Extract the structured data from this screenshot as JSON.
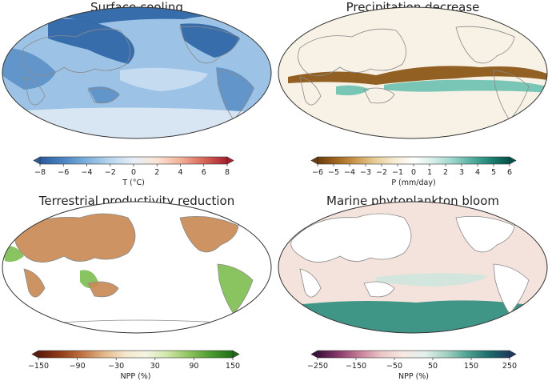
{
  "chart_data": [
    {
      "type": "heatmap",
      "title": "Surface cooling",
      "colorbar": {
        "label": "T (°C)",
        "ticks": [
          -8,
          -6,
          -4,
          -2,
          0,
          2,
          4,
          6,
          8
        ],
        "tick_labels": [
          "−8",
          "−6",
          "−4",
          "−2",
          "0",
          "2",
          "4",
          "6",
          "8"
        ],
        "range": [
          -8,
          8
        ],
        "colormap": [
          "#2c5a9c",
          "#4a85c2",
          "#7fb0db",
          "#b8d6ee",
          "#e6f0f8",
          "#fbe3d5",
          "#f2b199",
          "#d8675a",
          "#a51f2e"
        ]
      },
      "map_fill": "#9cc3e6",
      "regions": [
        {
          "kind": "land-dark",
          "color": "#2f66a6"
        },
        {
          "kind": "land-mid",
          "color": "#5d93c9"
        },
        {
          "kind": "ocean-light",
          "color": "#c9def1"
        },
        {
          "kind": "southern-band",
          "color": "#dde9f5"
        }
      ]
    },
    {
      "type": "heatmap",
      "title": "Precipitation decrease",
      "colorbar": {
        "label": "P (mm/day)",
        "ticks": [
          -6,
          -5,
          -4,
          -3,
          -2,
          -1,
          0,
          1,
          2,
          3,
          4,
          5,
          6
        ],
        "tick_labels": [
          "−6",
          "−5",
          "−4",
          "−3",
          "−2",
          "−1",
          "0",
          "1",
          "2",
          "3",
          "4",
          "5",
          "6"
        ],
        "range": [
          -6,
          6
        ],
        "colormap": [
          "#6b3c0c",
          "#a0661e",
          "#cd9a4e",
          "#e8cd96",
          "#f6ecd2",
          "#ffffff",
          "#d7efe9",
          "#9fd6cb",
          "#57b1a1",
          "#1f8373",
          "#02514a"
        ]
      },
      "map_fill": "#f7f1e6",
      "regions": [
        {
          "kind": "dry-band",
          "color": "#8a5414"
        },
        {
          "kind": "wet-band",
          "color": "#6fc2b2"
        }
      ]
    },
    {
      "type": "heatmap",
      "title": "Terrestrial productivity reduction",
      "colorbar": {
        "label": "NPP (%)",
        "ticks": [
          -150,
          -90,
          -30,
          30,
          90,
          150
        ],
        "tick_labels": [
          "−150",
          "−90",
          "−30",
          "30",
          "90",
          "150"
        ],
        "range": [
          -150,
          150
        ],
        "colormap": [
          "#5c1a0a",
          "#8f3b16",
          "#bf7140",
          "#e1b486",
          "#f5e6cc",
          "#f4f6e4",
          "#cde6a4",
          "#8dc25b",
          "#4a9a2e",
          "#1f6e14"
        ]
      },
      "map_fill": "#ffffff",
      "regions": [
        {
          "kind": "land-reduction",
          "color": "#c98a55"
        },
        {
          "kind": "land-increase",
          "color": "#7fbf52"
        }
      ]
    },
    {
      "type": "heatmap",
      "title": "Marine phytoplankton bloom",
      "colorbar": {
        "label": "NPP (%)",
        "ticks": [
          -250,
          -150,
          -50,
          50,
          150,
          250
        ],
        "tick_labels": [
          "−250",
          "−150",
          "−50",
          "50",
          "150",
          "250"
        ],
        "range": [
          -250,
          250
        ],
        "colormap": [
          "#3b0f3a",
          "#8a3a6b",
          "#c9809a",
          "#ecc7c7",
          "#f7e8e2",
          "#e4f0ec",
          "#a7d3c4",
          "#4fa392",
          "#1e6e6c",
          "#1c3a5e"
        ]
      },
      "map_fill": "#f4e3dc",
      "regions": [
        {
          "kind": "southern-bloom",
          "color": "#2f8e7e"
        },
        {
          "kind": "eq-pacific",
          "color": "#cfe6dc"
        }
      ]
    }
  ]
}
